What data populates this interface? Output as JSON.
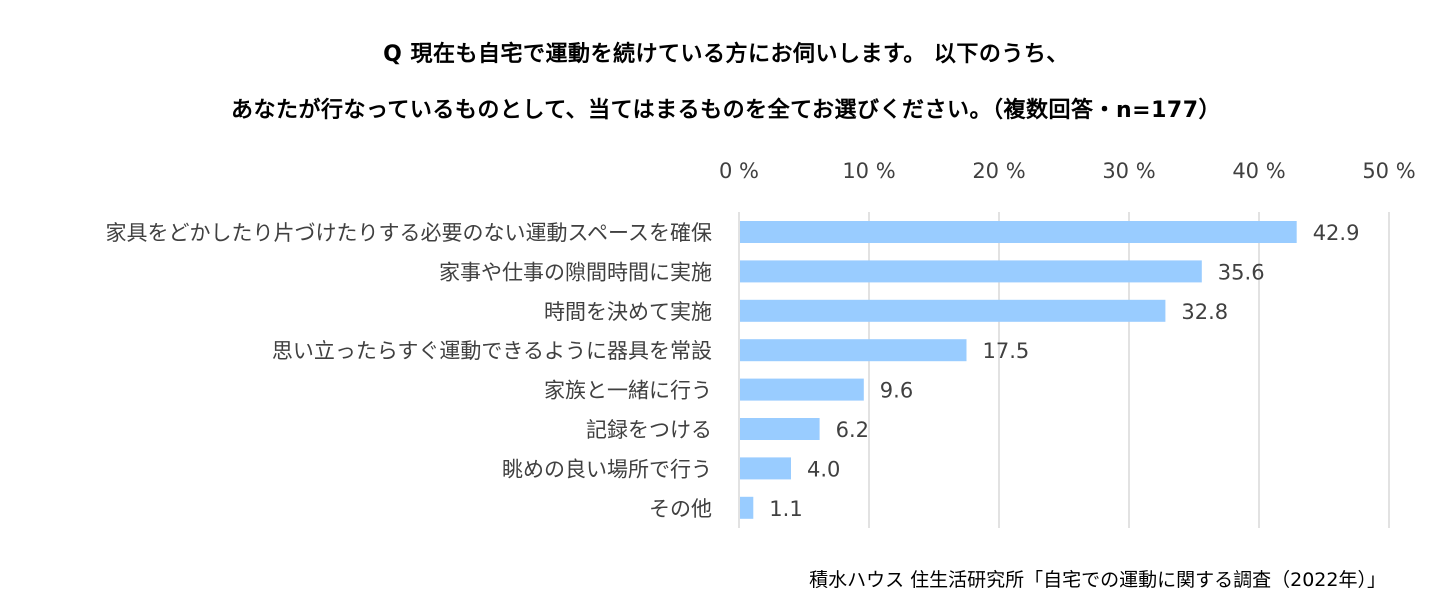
{
  "title": {
    "line1": "Q 現在も自宅で運動を続けている方にお伺いします。 以下のうち、",
    "line2": "あなたが行なっているものとして、当てはまるものを全てお選びください。（複数回答・n=177）"
  },
  "source": "積水ハウス 住生活研究所「自宅での運動に関する調査（2022年）」",
  "colors": {
    "bar": "#99CCFF",
    "grid": "#D9D9D9",
    "text": "#404040"
  },
  "chart_data": {
    "type": "bar",
    "orientation": "horizontal",
    "title": "Q 現在も自宅で運動を続けている方にお伺いします。 以下のうち、あなたが行なっているものとして、当てはまるものを全てお選びください。（複数回答・n=177）",
    "xlabel": "",
    "ylabel": "",
    "xlim": [
      0,
      50
    ],
    "x_ticks": [
      0,
      10,
      20,
      30,
      40,
      50
    ],
    "tick_labels": [
      "0 %",
      "10 %",
      "20 %",
      "30 %",
      "40 %",
      "50 %"
    ],
    "axis_position": "top",
    "grid": true,
    "categories": [
      "家具をどかしたり片づけたりする必要のない運動スペースを確保",
      "家事や仕事の隙間時間に実施",
      "時間を決めて実施",
      "思い立ったらすぐ運動できるように器具を常設",
      "家族と一緒に行う",
      "記録をつける",
      "眺めの良い場所で行う",
      "その他"
    ],
    "values": [
      42.9,
      35.6,
      32.8,
      17.5,
      9.6,
      6.2,
      4.0,
      1.1
    ],
    "value_labels": [
      "42.9",
      "35.6",
      "32.8",
      "17.5",
      "9.6",
      "6.2",
      "4.0",
      "1.1"
    ]
  }
}
